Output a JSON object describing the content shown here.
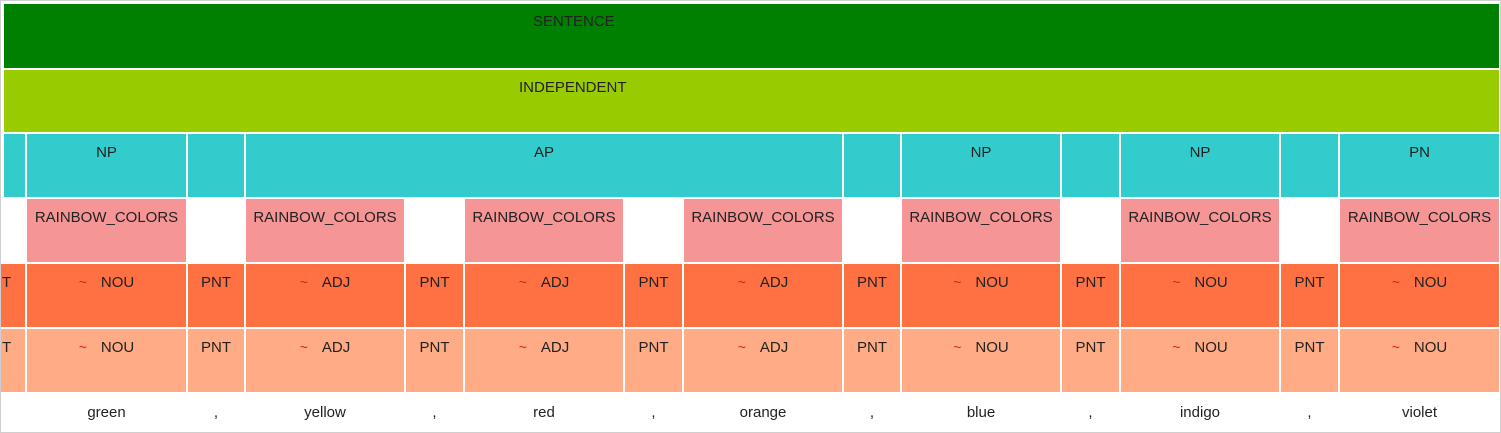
{
  "rows": {
    "sentence": {
      "label": "SENTENCE",
      "color": "#008000"
    },
    "clause": {
      "label": "INDEPENDENT",
      "color": "#99cc00"
    },
    "phrases": {
      "color": "#33cccc",
      "items": [
        {
          "label": ""
        },
        {
          "label": "NP"
        },
        {
          "label": ""
        },
        {
          "label": "AP"
        },
        {
          "label": ""
        },
        {
          "label": "NP"
        },
        {
          "label": ""
        },
        {
          "label": "NP"
        },
        {
          "label": ""
        },
        {
          "label": "PN"
        }
      ]
    },
    "semantic": {
      "color": "#f59595",
      "items": [
        {
          "label": ""
        },
        {
          "label": "RAINBOW_COLORS"
        },
        {
          "label": ""
        },
        {
          "label": "RAINBOW_COLORS"
        },
        {
          "label": ""
        },
        {
          "label": "RAINBOW_COLORS"
        },
        {
          "label": ""
        },
        {
          "label": "RAINBOW_COLORS"
        },
        {
          "label": ""
        },
        {
          "label": "RAINBOW_COLORS"
        },
        {
          "label": ""
        },
        {
          "label": "RAINBOW_COLORS"
        },
        {
          "label": ""
        },
        {
          "label": "RAINBOW_COLORS"
        }
      ]
    },
    "pos1": {
      "color": "#ff7043",
      "items": [
        {
          "label": "T",
          "mark": ""
        },
        {
          "label": "NOU",
          "mark": "~"
        },
        {
          "label": "PNT",
          "mark": ""
        },
        {
          "label": "ADJ",
          "mark": "~"
        },
        {
          "label": "PNT",
          "mark": ""
        },
        {
          "label": "ADJ",
          "mark": "~"
        },
        {
          "label": "PNT",
          "mark": ""
        },
        {
          "label": "ADJ",
          "mark": "~"
        },
        {
          "label": "PNT",
          "mark": ""
        },
        {
          "label": "NOU",
          "mark": "~"
        },
        {
          "label": "PNT",
          "mark": ""
        },
        {
          "label": "NOU",
          "mark": "~"
        },
        {
          "label": "PNT",
          "mark": ""
        },
        {
          "label": "NOU",
          "mark": "~"
        }
      ]
    },
    "pos2": {
      "color": "#ffab85",
      "items": [
        {
          "label": "T",
          "mark": ""
        },
        {
          "label": "NOU",
          "mark": "~"
        },
        {
          "label": "PNT",
          "mark": ""
        },
        {
          "label": "ADJ",
          "mark": "~"
        },
        {
          "label": "PNT",
          "mark": ""
        },
        {
          "label": "ADJ",
          "mark": "~"
        },
        {
          "label": "PNT",
          "mark": ""
        },
        {
          "label": "ADJ",
          "mark": "~"
        },
        {
          "label": "PNT",
          "mark": ""
        },
        {
          "label": "NOU",
          "mark": "~"
        },
        {
          "label": "PNT",
          "mark": ""
        },
        {
          "label": "NOU",
          "mark": "~"
        },
        {
          "label": "PNT",
          "mark": ""
        },
        {
          "label": "NOU",
          "mark": "~"
        }
      ]
    },
    "words": {
      "items": [
        {
          "label": ""
        },
        {
          "label": "green"
        },
        {
          "label": ","
        },
        {
          "label": "yellow"
        },
        {
          "label": ","
        },
        {
          "label": "red"
        },
        {
          "label": ","
        },
        {
          "label": "orange"
        },
        {
          "label": ","
        },
        {
          "label": "blue"
        },
        {
          "label": ","
        },
        {
          "label": "indigo"
        },
        {
          "label": ","
        },
        {
          "label": "violet"
        }
      ]
    }
  }
}
